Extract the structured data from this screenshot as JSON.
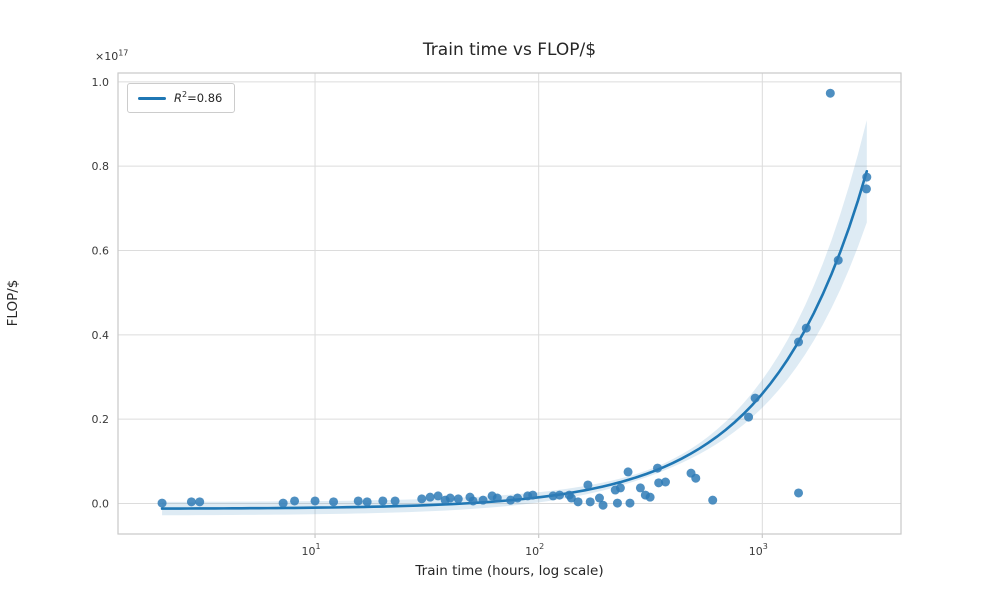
{
  "chart_data": {
    "type": "scatter",
    "title": "Train time vs FLOP/$",
    "xlabel": "Train time (hours, log scale)",
    "ylabel": "FLOP/$",
    "y_offset": {
      "base": "×10",
      "exp": "17"
    },
    "x_scale": "log",
    "grid": true,
    "xlim_hours": [
      1.315,
      4170
    ],
    "ylim_e17": [
      -0.0723,
      1.0209
    ],
    "x_ticks": [
      {
        "value": 10,
        "base": "10",
        "exp": "1"
      },
      {
        "value": 100,
        "base": "10",
        "exp": "2"
      },
      {
        "value": 1000,
        "base": "10",
        "exp": "3"
      }
    ],
    "y_ticks": [
      0.0,
      0.2,
      0.4,
      0.6,
      0.8,
      1.0
    ],
    "legend": {
      "position": "upper-left",
      "label_base": "R",
      "label_sup": "2",
      "label_tail": "=0.86"
    },
    "fit": {
      "kind": "linear_in_hours",
      "r_squared": 0.86,
      "slope_e17_per_hour": 0.000273,
      "intercept_e17": -0.0126,
      "x_start_hours": 2.07,
      "x_end_hours": 2932,
      "band_base_e17": 0.008,
      "band_slope_e17_per_hour": 4.6e-05,
      "band_center_hours": 300
    },
    "points_hours_vs_flop_e17": [
      [
        2.07,
        0.001
      ],
      [
        2.8,
        0.004
      ],
      [
        3.05,
        0.004
      ],
      [
        7.2,
        0.001
      ],
      [
        8.1,
        0.006
      ],
      [
        10,
        0.006
      ],
      [
        12.1,
        0.004
      ],
      [
        15.6,
        0.006
      ],
      [
        17.1,
        0.004
      ],
      [
        20.1,
        0.006
      ],
      [
        22.8,
        0.006
      ],
      [
        30,
        0.011
      ],
      [
        32.7,
        0.015
      ],
      [
        35.5,
        0.018
      ],
      [
        38.2,
        0.008
      ],
      [
        40.2,
        0.013
      ],
      [
        43.7,
        0.011
      ],
      [
        49.3,
        0.015
      ],
      [
        50.9,
        0.006
      ],
      [
        56.4,
        0.008
      ],
      [
        61.9,
        0.018
      ],
      [
        65.3,
        0.013
      ],
      [
        74.9,
        0.008
      ],
      [
        80.4,
        0.013
      ],
      [
        89.3,
        0.018
      ],
      [
        94.1,
        0.02
      ],
      [
        116,
        0.018
      ],
      [
        124,
        0.02
      ],
      [
        137,
        0.02
      ],
      [
        140,
        0.013
      ],
      [
        150,
        0.004
      ],
      [
        166,
        0.044
      ],
      [
        170,
        0.004
      ],
      [
        187,
        0.013
      ],
      [
        194,
        -0.004
      ],
      [
        220,
        0.032
      ],
      [
        225,
        0.001
      ],
      [
        232,
        0.037
      ],
      [
        251,
        0.075
      ],
      [
        256,
        0.001
      ],
      [
        285,
        0.037
      ],
      [
        300,
        0.02
      ],
      [
        315,
        0.015
      ],
      [
        340,
        0.084
      ],
      [
        344,
        0.049
      ],
      [
        369,
        0.051
      ],
      [
        480,
        0.072
      ],
      [
        504,
        0.06
      ],
      [
        600,
        0.008
      ],
      [
        868,
        0.205
      ],
      [
        929,
        0.25
      ],
      [
        1452,
        0.383
      ],
      [
        1573,
        0.416
      ],
      [
        1452,
        0.025
      ],
      [
        2014,
        0.973
      ],
      [
        2185,
        0.577
      ],
      [
        2922,
        0.746
      ],
      [
        2932,
        0.774
      ]
    ],
    "colors": {
      "point": "#2f7bb6",
      "line": "#1f77b4",
      "band": "#1f77b4",
      "grid": "#dcdcdc",
      "spine": "#c9c9c9",
      "tick_text": "#3a3a3a",
      "text": "#262626"
    }
  }
}
